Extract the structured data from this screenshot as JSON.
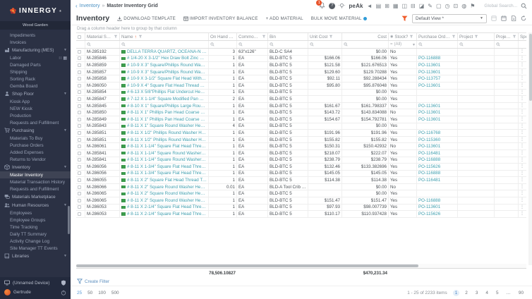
{
  "colors": {
    "accent": "#e8542b",
    "link": "#3f9eae",
    "sidebar_bg": "#2b3144",
    "flag_green": "#3d9d4e"
  },
  "sidebar": {
    "logo_text": "INNERGY",
    "logo_reg": "®",
    "workspace": "Wood Garden",
    "nav": [
      {
        "type": "item",
        "label": "Impediments"
      },
      {
        "type": "item",
        "label": "Invoices"
      },
      {
        "type": "section",
        "icon": "factory-icon",
        "label": "Manufacturing (MES)"
      },
      {
        "type": "sub",
        "label": "Labor",
        "trailing": [
          "∷",
          "▦"
        ]
      },
      {
        "type": "sub",
        "label": "Damaged Parts"
      },
      {
        "type": "sub",
        "label": "Shipping"
      },
      {
        "type": "sub",
        "label": "Sorting Rack"
      },
      {
        "type": "sub",
        "label": "Gemba Board"
      },
      {
        "type": "section",
        "icon": "person-icon",
        "label": "Shop Floor"
      },
      {
        "type": "sub",
        "label": "Kiosk App"
      },
      {
        "type": "sub",
        "label": "NEW Kiosk"
      },
      {
        "type": "sub",
        "label": "Production"
      },
      {
        "type": "sub",
        "label": "Requests and Fulfillment"
      },
      {
        "type": "section",
        "icon": "cart-icon",
        "label": "Purchasing"
      },
      {
        "type": "sub",
        "label": "Materials To Buy"
      },
      {
        "type": "sub",
        "label": "Purchase Orders"
      },
      {
        "type": "sub",
        "label": "Added Expenses"
      },
      {
        "type": "sub",
        "label": "Returns to Vendor"
      },
      {
        "type": "section",
        "icon": "box-icon",
        "label": "Inventory"
      },
      {
        "type": "sub",
        "label": "Master Inventory",
        "selected": true
      },
      {
        "type": "sub",
        "label": "Material Transaction History"
      },
      {
        "type": "sub",
        "label": "Requests and Fulfillment"
      },
      {
        "type": "section",
        "icon": "chat-icon",
        "label": "Materials Marketplace",
        "nochevron": true
      },
      {
        "type": "section",
        "icon": "people-icon",
        "label": "Human Resources"
      },
      {
        "type": "sub",
        "label": "Employees"
      },
      {
        "type": "sub",
        "label": "Employee Groups"
      },
      {
        "type": "sub",
        "label": "Time Tracking"
      },
      {
        "type": "sub",
        "label": "Daily TT Summary"
      },
      {
        "type": "sub",
        "label": "Activity Change Log"
      },
      {
        "type": "sub",
        "label": "Site Manager TT Events"
      },
      {
        "type": "section",
        "icon": "book-icon",
        "label": "Libraries"
      }
    ],
    "device_label": "(Unnamed Device)",
    "user_name": "Gertrude"
  },
  "header": {
    "breadcrumb": {
      "back": "‹",
      "section": "Inventory",
      "sep": "»",
      "page": "Master Inventory Grid"
    },
    "notification_badge": "1",
    "help_glyph": "?",
    "peak_label": "peAk",
    "icon_strip": [
      {
        "name": "launch-icon",
        "glyph": "◄"
      },
      {
        "name": "clipboard-icon",
        "glyph": "▤"
      },
      {
        "name": "calendar-icon",
        "glyph": "⊞"
      },
      {
        "name": "gallery-icon",
        "glyph": "▦"
      },
      {
        "name": "video-icon",
        "glyph": "◫"
      },
      {
        "name": "table-icon",
        "glyph": "⊟"
      },
      {
        "name": "chart-icon",
        "glyph": "◪"
      },
      {
        "name": "edit-icon",
        "glyph": "✎"
      },
      {
        "name": "device-icon",
        "glyph": "▢"
      },
      {
        "name": "clock-icon",
        "glyph": "◷"
      },
      {
        "name": "schedule-icon",
        "glyph": "⊡"
      },
      {
        "name": "bell-icon",
        "glyph": "◍"
      },
      {
        "name": "announce-icon",
        "glyph": "⚑"
      }
    ],
    "search_placeholder": "Global Search..."
  },
  "toolbar": {
    "title": "Inventory",
    "buttons": [
      {
        "name": "download-template-button",
        "label": "DOWNLOAD TEMPLATE",
        "icon": "download-icon"
      },
      {
        "name": "import-inventory-balance-button",
        "label": "IMPORT INVENTORY BALANCE",
        "icon": "import-icon"
      },
      {
        "name": "add-material-button",
        "label": "+ ADD MATERIAL",
        "icon": ""
      },
      {
        "name": "bulk-move-material-button",
        "label": "BULK MOVE MATERIAL",
        "icon": "",
        "trailing_dot": true
      }
    ],
    "view_select_value": "Default View *"
  },
  "grid": {
    "group_hint": "Drag a column header here to group by that column",
    "columns": [
      {
        "key": "sel",
        "label": ""
      },
      {
        "key": "sku",
        "label": "Material SKU",
        "filter": true
      },
      {
        "key": "name",
        "label": "Name",
        "sort": "↑",
        "filter": true
      },
      {
        "key": "onhand",
        "label": "On Hand Total"
      },
      {
        "key": "uom",
        "label": "Common UoM",
        "filter": true
      },
      {
        "key": "bin",
        "label": "Bin"
      },
      {
        "key": "unitcost",
        "label": "Unit Cost",
        "filter": true
      },
      {
        "key": "cost",
        "label": "Cost",
        "align": "right"
      },
      {
        "key": "stock",
        "label": "Stock?",
        "info": true,
        "filter": true
      },
      {
        "key": "po",
        "label": "Purchase Order #",
        "filter": true
      },
      {
        "key": "project",
        "label": "Project",
        "filter": true
      },
      {
        "key": "projnum",
        "label": "Project #",
        "filter": true
      },
      {
        "key": "special",
        "label": "Special"
      }
    ],
    "stock_filter_value": "(All)",
    "rows": [
      {
        "sku": "M-285192",
        "name": "DELLA TERRA QUARTZ, OCEANA-N 3 CM",
        "qty": "3",
        "uom": "63\"x126\"",
        "bin": "BLD-C SA4",
        "unit": "",
        "cost": "$0.00",
        "stock": "No",
        "po": ""
      },
      {
        "sku": "M-285846",
        "name": "# 1/4-20 X 3-1/2\" Hex Draw Bolt Zinc Plated (box of 5",
        "qty": "1",
        "uom": "EA",
        "bin": "BLD-BTC 5",
        "unit": "$166.06",
        "cost": "$166.06",
        "stock": "Yes",
        "po": "PO-116888"
      },
      {
        "sku": "M-285859",
        "name": "# 10-9 X 3\" Square/Phillips Round Washer Head Coar",
        "qty": "1",
        "uom": "EA",
        "bin": "BLD-BTC 5",
        "unit": "$121.58",
        "cost": "$121.676513",
        "stock": "Yes",
        "po": "PO-113601"
      },
      {
        "sku": "M-285857",
        "name": "# 10-9 X 3\" Square/Phillips Round Washer Head Coar",
        "qty": "1",
        "uom": "EA",
        "bin": "BLD-BTC 5",
        "unit": "$129.60",
        "cost": "$129.70288",
        "stock": "Yes",
        "po": "PO-113601"
      },
      {
        "sku": "M-285858",
        "name": "# 10-9 X 3-1/2\" Square Flat Head With Nibs Under He",
        "qty": "1",
        "uom": "EA",
        "bin": "BLD-BTC 5",
        "unit": "$92.11",
        "cost": "$92.288434",
        "stock": "Yes",
        "po": "PO-113757"
      },
      {
        "sku": "M-286050",
        "name": "# 10-9 X 4\" Square Flat Head Thread Type 17 Zinc Pl",
        "qty": "1",
        "uom": "EA",
        "bin": "BLD-BTC 5",
        "unit": "$95.80",
        "cost": "$95.876048",
        "stock": "Yes",
        "po": "PO-113601"
      },
      {
        "sku": "M-285854",
        "name": "# 6-13 X 5/8\"Phillips Flat Undercut Head Coarse Thre",
        "qty": "1",
        "uom": "EA",
        "bin": "BLD-BTC 5",
        "unit": "",
        "cost": "$0.00",
        "stock": "Yes",
        "po": ""
      },
      {
        "sku": "M-285847",
        "name": "# 7-12 X 1-1/4\" Square Modified Pan Head, Coarse T",
        "qty": "2",
        "uom": "EA",
        "bin": "BLD-BTC 5",
        "unit": "",
        "cost": "$0.00",
        "stock": "Yes",
        "po": ""
      },
      {
        "sku": "M-285845",
        "name": "# 8-10 X 1\" Square/Phillips Large Round Washer Hea",
        "qty": "1",
        "uom": "EA",
        "bin": "BLD-BTC 5",
        "unit": "$161.67",
        "cost": "$161.798337",
        "stock": "Yes",
        "po": "PO-113601"
      },
      {
        "sku": "M-285850",
        "name": "# 8-11 X 1\" Phillips Pan Head Coarse Thread Black P",
        "qty": "1",
        "uom": "EA",
        "bin": "BLD-BTC 5",
        "unit": "$143.72",
        "cost": "$143.834088",
        "stock": "No",
        "po": "PO-113601"
      },
      {
        "sku": "M-285849",
        "name": "# 8-11 X 1\" Phillips Pan Head Coarse Thread Zinc Pla",
        "qty": "1",
        "uom": "EA",
        "bin": "BLD-BTC 5",
        "unit": "$154.67",
        "cost": "$154.792781",
        "stock": "Yes",
        "po": "PO-113601"
      },
      {
        "sku": "M-285843",
        "name": "# 8-11 X 1\" Square Round Washer Head Coarse Thre",
        "qty": "4",
        "uom": "EA",
        "bin": "BLD-BTC 5",
        "unit": "",
        "cost": "$0.00",
        "stock": "Yes",
        "po": ""
      },
      {
        "sku": "M-285851",
        "name": "# 8-11 X 1/2\" Phillips Round Washer Head Coarse Th",
        "qty": "1",
        "uom": "EA",
        "bin": "BLD-BTC 5",
        "unit": "$191.96",
        "cost": "$191.96",
        "stock": "Yes",
        "po": "PO-116768"
      },
      {
        "sku": "M-285851",
        "name": "# 8-11 X 1/2\" Phillips Round Washer Head Coarse Th",
        "qty": "1",
        "uom": "EA",
        "bin": "BLD-BTC 5",
        "unit": "$155.82",
        "cost": "$155.82",
        "stock": "Yes",
        "po": "PO-115360"
      },
      {
        "sku": "M-286061",
        "name": "# 8-11 X 1-1/4\" Square Flat Head Thread Type 17 Bla",
        "qty": "1",
        "uom": "EA",
        "bin": "BLD-BTC 5",
        "unit": "$150.31",
        "cost": "$150.42932",
        "stock": "No",
        "po": "PO-113601"
      },
      {
        "sku": "M-285841",
        "name": "# 8-11 X 1-1/4\" Square Round Washer Head Coarse T",
        "qty": "1",
        "uom": "EA",
        "bin": "BLD-BTC 5",
        "unit": "$218.07",
        "cost": "$222.07",
        "stock": "Yes",
        "po": "PO-116481"
      },
      {
        "sku": "M-285841",
        "name": "# 8-11 X 1-1/4\" Square Round Washer Head Coarse T",
        "qty": "1",
        "uom": "EA",
        "bin": "BLD-BTC 5",
        "unit": "$238.79",
        "cost": "$238.79",
        "stock": "Yes",
        "po": "PO-116888"
      },
      {
        "sku": "M-286056",
        "name": "# 8-11 X 1-3/4\" Square Flat Head Thread Type 17 Zin",
        "qty": "1",
        "uom": "EA",
        "bin": "BLD-BTC 5",
        "unit": "$132.46",
        "cost": "$133.382696",
        "stock": "Yes",
        "po": "PO-115626"
      },
      {
        "sku": "M-286056",
        "name": "# 8-11 X 1-3/4\" Square Flat Head Thread Type 17 Zin",
        "qty": "1",
        "uom": "EA",
        "bin": "BLD-BTC 5",
        "unit": "$145.05",
        "cost": "$145.05",
        "stock": "Yes",
        "po": "PO-116888"
      },
      {
        "sku": "M-286055",
        "name": "# 8-11 X 2\" Square Flat Head Thread Type 17 Black S",
        "qty": "1",
        "uom": "EA",
        "bin": "BLD-BTC 5",
        "unit": "$114.38",
        "cost": "$114.38",
        "stock": "Yes",
        "po": "PO-116481"
      },
      {
        "sku": "M-286066",
        "name": "# 8-11 X 2\" Square Round Washer Head Type 17 Blac",
        "qty": "0.01",
        "uom": "EA",
        "bin": "BLD-A Tool Crib Cub",
        "unit": "",
        "cost": "$0.00",
        "stock": "No",
        "po": ""
      },
      {
        "sku": "M-286065",
        "name": "# 8-11 X 2\" Square Round Washer Head Type 17 Zinc",
        "qty": "1",
        "uom": "EA",
        "bin": "BLD-BTC 5",
        "unit": "",
        "cost": "$0.00",
        "stock": "Yes",
        "po": ""
      },
      {
        "sku": "M-286065",
        "name": "# 8-11 X 2\" Square Round Washer Head Type 17 Zinc",
        "qty": "1",
        "uom": "EA",
        "bin": "BLD-BTC 5",
        "unit": "$151.47",
        "cost": "$151.47",
        "stock": "Yes",
        "po": "PO-116888"
      },
      {
        "sku": "M-286053",
        "name": "# 8-11 X 2-1/4\" Square Flat Head Thread Type 17 Zin",
        "qty": "1",
        "uom": "EA",
        "bin": "BLD-BTC 5",
        "unit": "$97.93",
        "cost": "$98.007739",
        "stock": "Yes",
        "po": "PO-113601"
      },
      {
        "sku": "M-286053",
        "name": "# 8-11 X 2-1/4\" Square Flat Head Thread Type 17 Zin",
        "qty": "1",
        "uom": "EA",
        "bin": "BLD-BTC 5",
        "unit": "$110.17",
        "cost": "$110.937428",
        "stock": "Yes",
        "po": "PO-115626"
      }
    ],
    "summary": {
      "onhand_total": "78,506.10827",
      "cost_total": "$470,231.34"
    }
  },
  "footer": {
    "create_filter_label": "Create Filter",
    "page_sizes": [
      "25",
      "50",
      "100",
      "500"
    ],
    "active_page_size": "25",
    "range_info": "1 - 25 of 2233 items",
    "pages": [
      "1",
      "2",
      "3",
      "4",
      "5",
      "…",
      "90"
    ],
    "current_page": "1"
  }
}
